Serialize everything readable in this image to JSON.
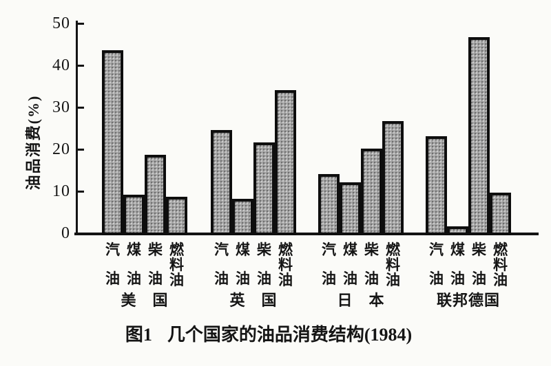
{
  "background_color": "#fbfbf8",
  "caption": {
    "prefix": "图1",
    "text": "几个国家的油品消费结构(1984)"
  },
  "chart_data": {
    "type": "bar",
    "title": "图1 几个国家的油品消费结构(1984)",
    "ylabel": "油品消费(%)",
    "xlabel": "",
    "ylim": [
      0,
      50
    ],
    "yticks": [
      0,
      10,
      20,
      30,
      40,
      50
    ],
    "grid": false,
    "legend": "none",
    "bar_fill_color": "#a3a3a3",
    "bar_border_color": "#0e0e0e",
    "categories": [
      "汽油",
      "煤油",
      "柴油",
      "燃料油"
    ],
    "groups": [
      {
        "country": "美国",
        "country_display": "美　国",
        "values": [
          43.5,
          9,
          18.5,
          8.5
        ]
      },
      {
        "country": "英国",
        "country_display": "英　国",
        "values": [
          24.5,
          8,
          21.5,
          34
        ]
      },
      {
        "country": "日本",
        "country_display": "日　本",
        "values": [
          14,
          12,
          20,
          26.5
        ]
      },
      {
        "country": "联邦德国",
        "country_display": "联邦德国",
        "values": [
          23,
          1.5,
          46.5,
          9.5
        ]
      }
    ]
  }
}
